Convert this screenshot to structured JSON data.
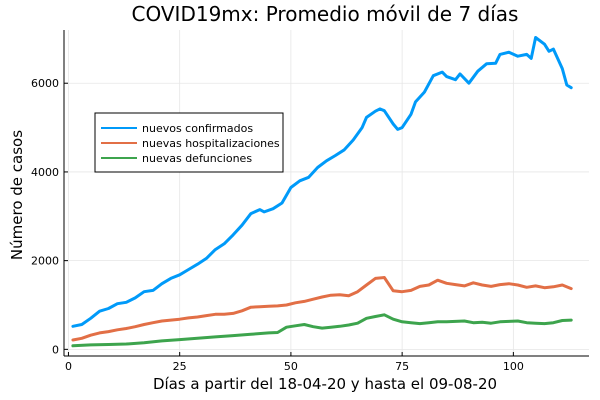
{
  "chart_data": {
    "type": "line",
    "title": "COVID19mx: Promedio móvil de 7 días",
    "xlabel": "Días a partir del 18-04-20 y hasta el 09-08-20",
    "ylabel": "Número de casos",
    "xlim": [
      -1,
      117
    ],
    "ylim": [
      -150,
      7200
    ],
    "xticks": [
      0,
      25,
      50,
      75,
      100
    ],
    "yticks": [
      0,
      2000,
      4000,
      6000
    ],
    "grid": true,
    "legend_position": "upper-left",
    "series": [
      {
        "name": "nuevos confirmados",
        "color": "#009af9",
        "points": [
          [
            1,
            520
          ],
          [
            3,
            560
          ],
          [
            5,
            700
          ],
          [
            7,
            860
          ],
          [
            9,
            920
          ],
          [
            11,
            1030
          ],
          [
            13,
            1060
          ],
          [
            15,
            1160
          ],
          [
            17,
            1300
          ],
          [
            19,
            1330
          ],
          [
            21,
            1480
          ],
          [
            23,
            1600
          ],
          [
            25,
            1680
          ],
          [
            27,
            1800
          ],
          [
            29,
            1920
          ],
          [
            31,
            2050
          ],
          [
            33,
            2250
          ],
          [
            35,
            2380
          ],
          [
            37,
            2580
          ],
          [
            39,
            2800
          ],
          [
            41,
            3060
          ],
          [
            43,
            3150
          ],
          [
            44,
            3100
          ],
          [
            46,
            3170
          ],
          [
            48,
            3300
          ],
          [
            50,
            3650
          ],
          [
            52,
            3800
          ],
          [
            54,
            3880
          ],
          [
            56,
            4100
          ],
          [
            58,
            4250
          ],
          [
            60,
            4370
          ],
          [
            62,
            4500
          ],
          [
            64,
            4720
          ],
          [
            66,
            5000
          ],
          [
            67,
            5230
          ],
          [
            69,
            5370
          ],
          [
            70,
            5420
          ],
          [
            71,
            5380
          ],
          [
            73,
            5080
          ],
          [
            74,
            4960
          ],
          [
            75,
            5000
          ],
          [
            77,
            5300
          ],
          [
            78,
            5580
          ],
          [
            80,
            5800
          ],
          [
            82,
            6170
          ],
          [
            84,
            6250
          ],
          [
            85,
            6150
          ],
          [
            87,
            6080
          ],
          [
            88,
            6210
          ],
          [
            90,
            6000
          ],
          [
            92,
            6270
          ],
          [
            94,
            6440
          ],
          [
            96,
            6450
          ],
          [
            97,
            6650
          ],
          [
            99,
            6700
          ],
          [
            101,
            6610
          ],
          [
            103,
            6650
          ],
          [
            104,
            6560
          ],
          [
            105,
            7030
          ],
          [
            107,
            6880
          ],
          [
            108,
            6720
          ],
          [
            109,
            6770
          ],
          [
            111,
            6330
          ],
          [
            112,
            5960
          ],
          [
            113,
            5900
          ]
        ]
      },
      {
        "name": "nuevas hospitalizaciones",
        "color": "#e26f46",
        "points": [
          [
            1,
            210
          ],
          [
            3,
            250
          ],
          [
            5,
            320
          ],
          [
            7,
            370
          ],
          [
            9,
            400
          ],
          [
            11,
            440
          ],
          [
            13,
            470
          ],
          [
            15,
            510
          ],
          [
            17,
            560
          ],
          [
            19,
            600
          ],
          [
            21,
            640
          ],
          [
            23,
            660
          ],
          [
            25,
            680
          ],
          [
            27,
            710
          ],
          [
            29,
            730
          ],
          [
            31,
            760
          ],
          [
            33,
            790
          ],
          [
            35,
            790
          ],
          [
            37,
            810
          ],
          [
            39,
            870
          ],
          [
            41,
            950
          ],
          [
            43,
            960
          ],
          [
            45,
            970
          ],
          [
            47,
            980
          ],
          [
            49,
            1000
          ],
          [
            51,
            1050
          ],
          [
            53,
            1080
          ],
          [
            55,
            1130
          ],
          [
            57,
            1180
          ],
          [
            59,
            1220
          ],
          [
            61,
            1230
          ],
          [
            63,
            1210
          ],
          [
            65,
            1300
          ],
          [
            67,
            1450
          ],
          [
            69,
            1600
          ],
          [
            71,
            1620
          ],
          [
            73,
            1320
          ],
          [
            75,
            1300
          ],
          [
            77,
            1330
          ],
          [
            79,
            1420
          ],
          [
            81,
            1450
          ],
          [
            83,
            1560
          ],
          [
            85,
            1490
          ],
          [
            87,
            1460
          ],
          [
            89,
            1430
          ],
          [
            91,
            1500
          ],
          [
            93,
            1450
          ],
          [
            95,
            1420
          ],
          [
            97,
            1460
          ],
          [
            99,
            1480
          ],
          [
            101,
            1450
          ],
          [
            103,
            1400
          ],
          [
            105,
            1430
          ],
          [
            107,
            1390
          ],
          [
            109,
            1410
          ],
          [
            111,
            1450
          ],
          [
            113,
            1370
          ]
        ]
      },
      {
        "name": "nuevas defunciones",
        "color": "#3da44d",
        "points": [
          [
            1,
            80
          ],
          [
            5,
            100
          ],
          [
            9,
            110
          ],
          [
            13,
            120
          ],
          [
            17,
            150
          ],
          [
            21,
            190
          ],
          [
            25,
            220
          ],
          [
            29,
            250
          ],
          [
            33,
            280
          ],
          [
            37,
            310
          ],
          [
            41,
            340
          ],
          [
            45,
            370
          ],
          [
            47,
            380
          ],
          [
            49,
            500
          ],
          [
            51,
            530
          ],
          [
            53,
            560
          ],
          [
            55,
            510
          ],
          [
            57,
            480
          ],
          [
            59,
            500
          ],
          [
            61,
            520
          ],
          [
            63,
            550
          ],
          [
            65,
            590
          ],
          [
            67,
            700
          ],
          [
            69,
            740
          ],
          [
            71,
            780
          ],
          [
            73,
            680
          ],
          [
            75,
            620
          ],
          [
            77,
            600
          ],
          [
            79,
            580
          ],
          [
            81,
            600
          ],
          [
            83,
            620
          ],
          [
            85,
            620
          ],
          [
            87,
            630
          ],
          [
            89,
            640
          ],
          [
            91,
            600
          ],
          [
            93,
            610
          ],
          [
            95,
            590
          ],
          [
            97,
            620
          ],
          [
            99,
            630
          ],
          [
            101,
            640
          ],
          [
            103,
            600
          ],
          [
            105,
            590
          ],
          [
            107,
            580
          ],
          [
            109,
            600
          ],
          [
            111,
            650
          ],
          [
            113,
            660
          ]
        ]
      }
    ]
  }
}
